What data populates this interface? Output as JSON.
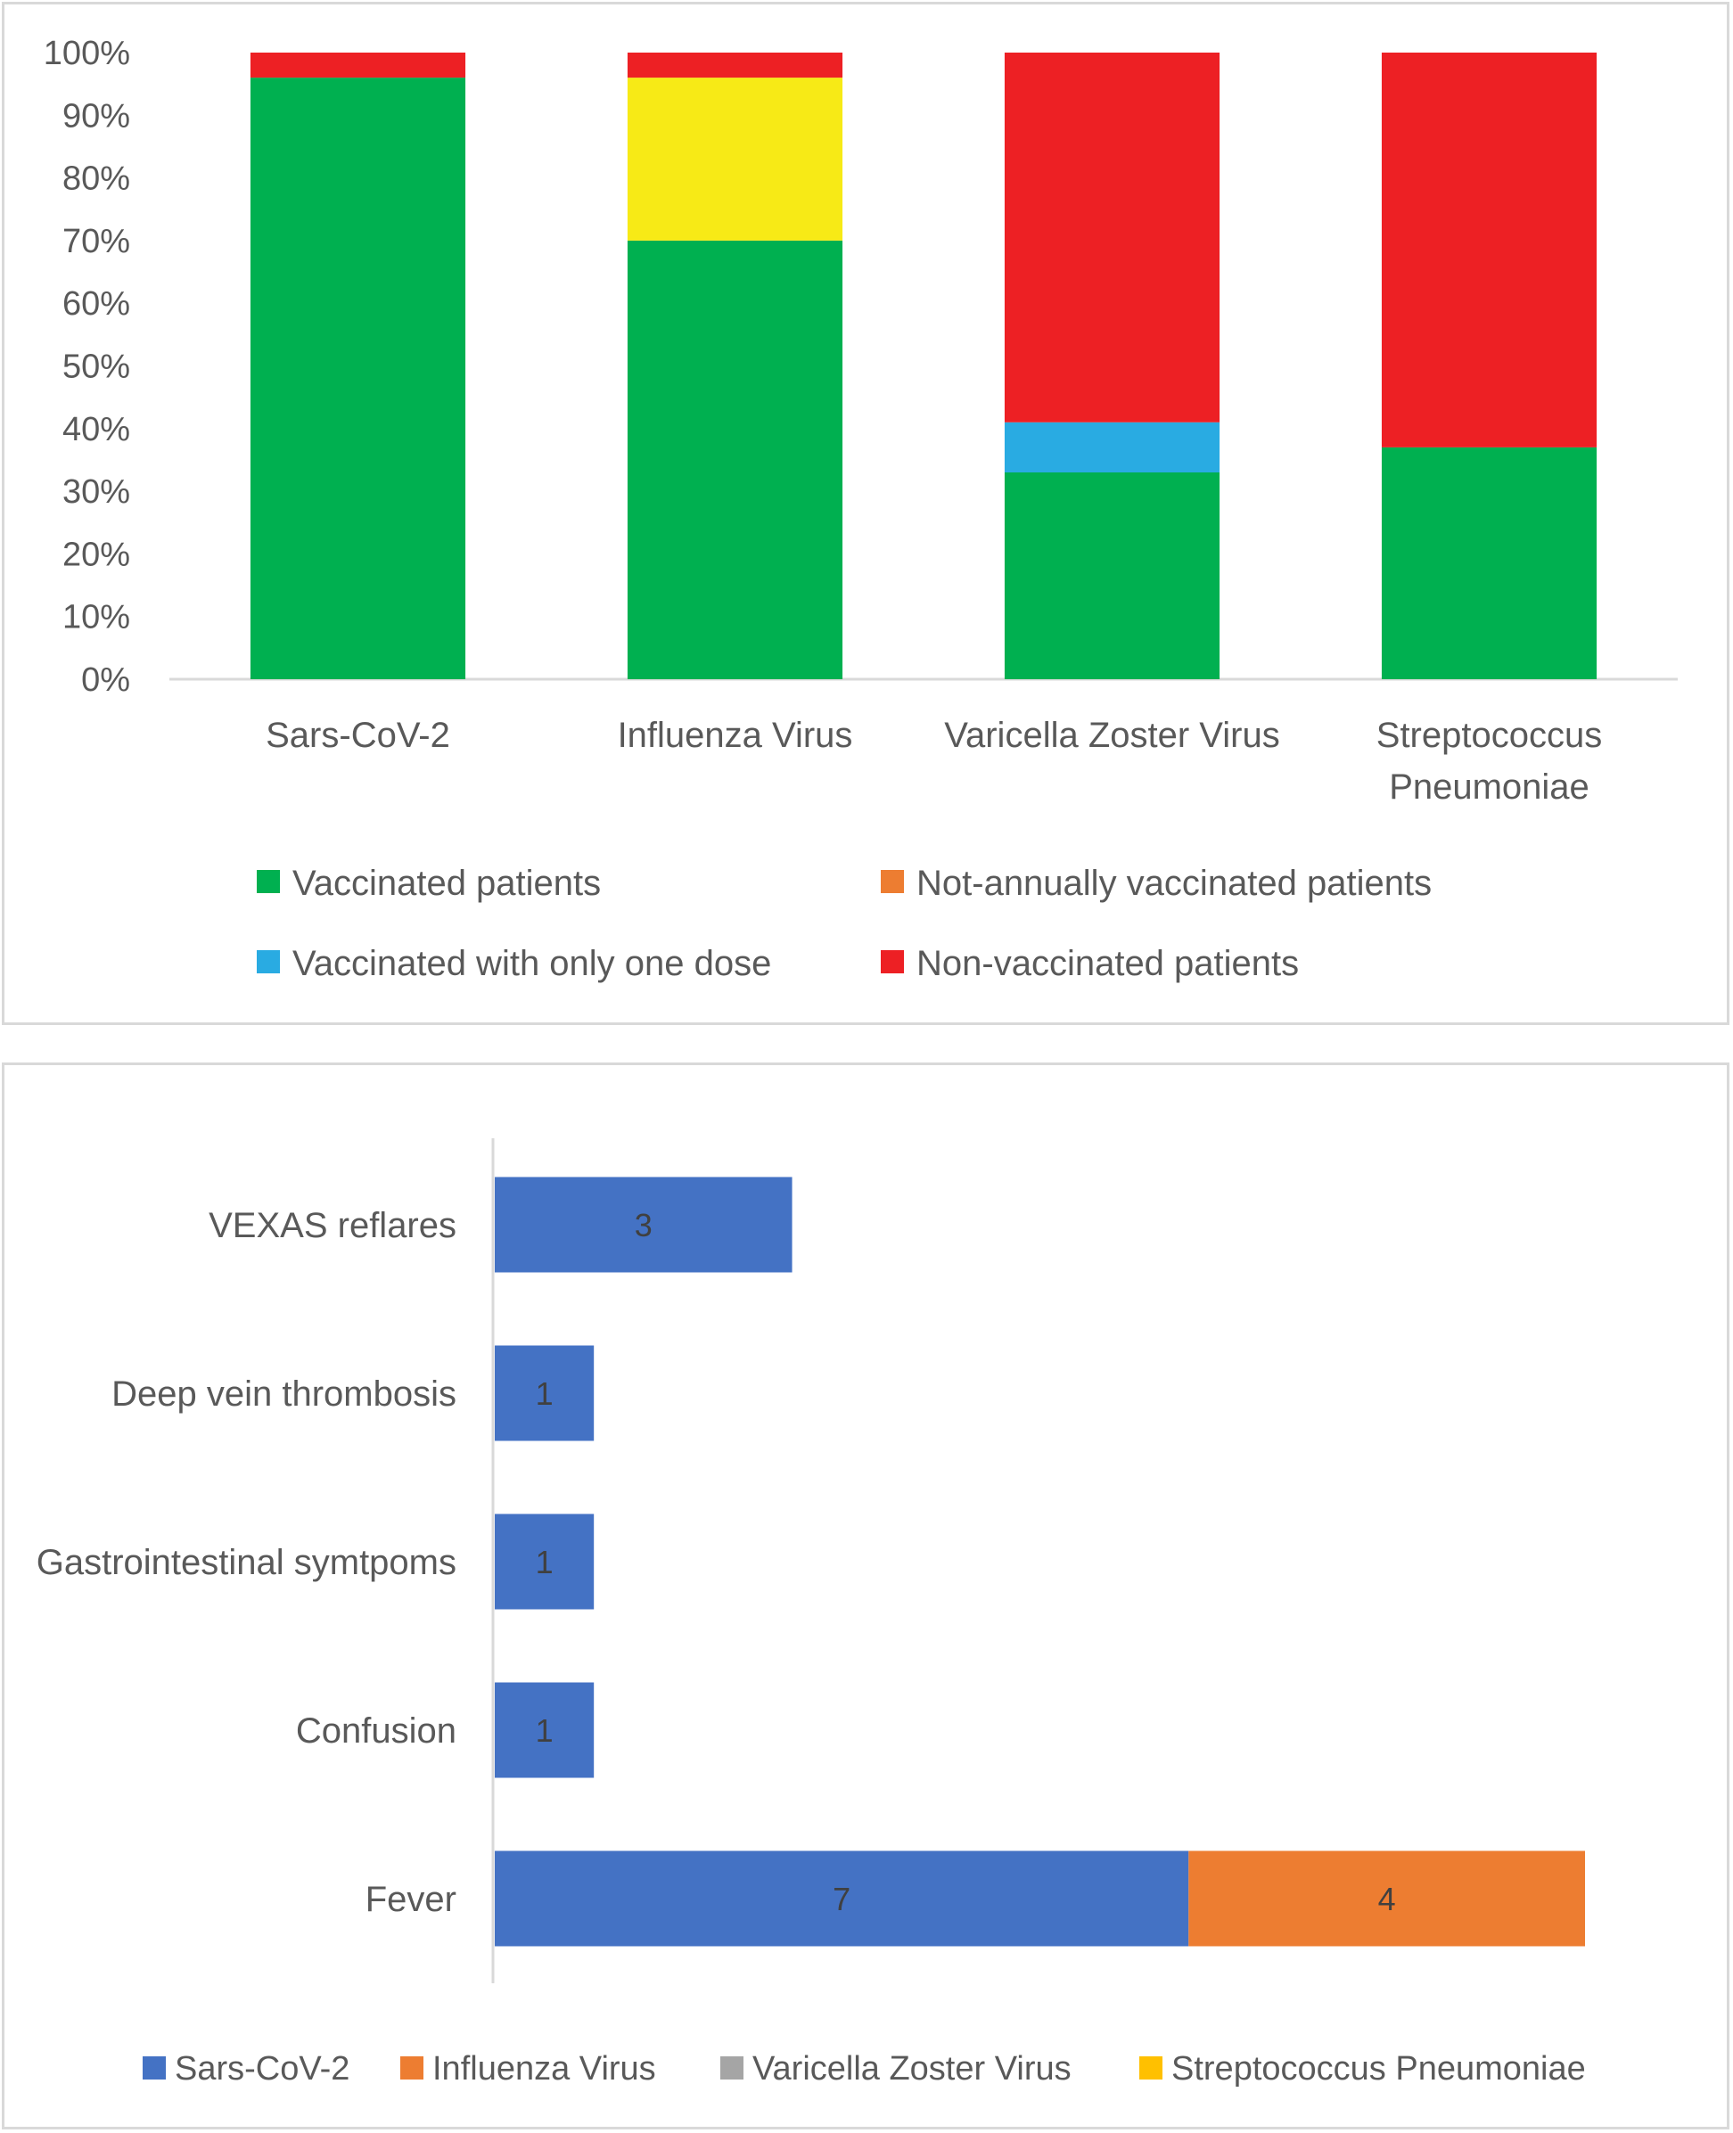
{
  "chart_data": [
    {
      "type": "bar",
      "orientation": "vertical",
      "stacked": true,
      "categories": [
        [
          "Sars-CoV-2"
        ],
        [
          "Influenza Virus"
        ],
        [
          "Varicella Zoster Virus"
        ],
        [
          "Streptococcus",
          "Pneumoniae"
        ]
      ],
      "ylim": [
        0,
        100
      ],
      "yticks": [
        "0%",
        "10%",
        "20%",
        "30%",
        "40%",
        "50%",
        "60%",
        "70%",
        "80%",
        "90%",
        "100%"
      ],
      "grid": false,
      "legend_position": "bottom",
      "series": [
        {
          "name": "Vaccinated patients",
          "color": "#00b050",
          "values": [
            96,
            70,
            33,
            37
          ]
        },
        {
          "name": "Not-annually vaccinated patients",
          "color": "#ed7d31",
          "values": [
            0,
            0,
            0,
            0
          ]
        },
        {
          "name": "",
          "color": "#f7ea16",
          "values": [
            0,
            26,
            0,
            0
          ]
        },
        {
          "name": "Vaccinated with only one dose",
          "color": "#29abe2",
          "values": [
            0,
            0,
            8,
            0
          ]
        },
        {
          "name": "Non-vaccinated patients",
          "color": "#ed2024",
          "values": [
            4,
            4,
            59,
            63
          ]
        }
      ]
    },
    {
      "type": "bar",
      "orientation": "horizontal",
      "stacked": true,
      "categories": [
        "VEXAS reflares",
        "Deep vein thrombosis",
        "Gastrointestinal symtpoms",
        "Confusion",
        "Fever"
      ],
      "xlim": [
        0,
        11
      ],
      "grid": false,
      "legend_position": "bottom",
      "series": [
        {
          "name": "Sars-CoV-2",
          "color": "#4472c4",
          "values": [
            3,
            1,
            1,
            1,
            7
          ],
          "labels": [
            "3",
            "1",
            "1",
            "1",
            "7"
          ]
        },
        {
          "name": "Influenza Virus",
          "color": "#ed7d31",
          "values": [
            0,
            0,
            0,
            0,
            4
          ],
          "labels": [
            "",
            "",
            "",
            "",
            "4"
          ]
        },
        {
          "name": "Varicella Zoster Virus",
          "color": "#a5a5a5",
          "values": [
            0,
            0,
            0,
            0,
            0
          ]
        },
        {
          "name": "Streptococcus Pneumoniae",
          "color": "#ffc000",
          "values": [
            0,
            0,
            0,
            0,
            0
          ]
        }
      ]
    }
  ],
  "legend1": [
    {
      "label": "Vaccinated patients",
      "color": "#00b050"
    },
    {
      "label": "Not-annually vaccinated patients",
      "color": "#ed7d31"
    },
    {
      "label": "Vaccinated with only one dose",
      "color": "#29abe2"
    },
    {
      "label": "Non-vaccinated patients",
      "color": "#ed2024"
    }
  ],
  "legend2": [
    {
      "label": "Sars-CoV-2",
      "color": "#4472c4"
    },
    {
      "label": "Influenza Virus",
      "color": "#ed7d31"
    },
    {
      "label": "Varicella Zoster Virus",
      "color": "#a5a5a5"
    },
    {
      "label": "Streptococcus Pneumoniae",
      "color": "#ffc000"
    }
  ]
}
